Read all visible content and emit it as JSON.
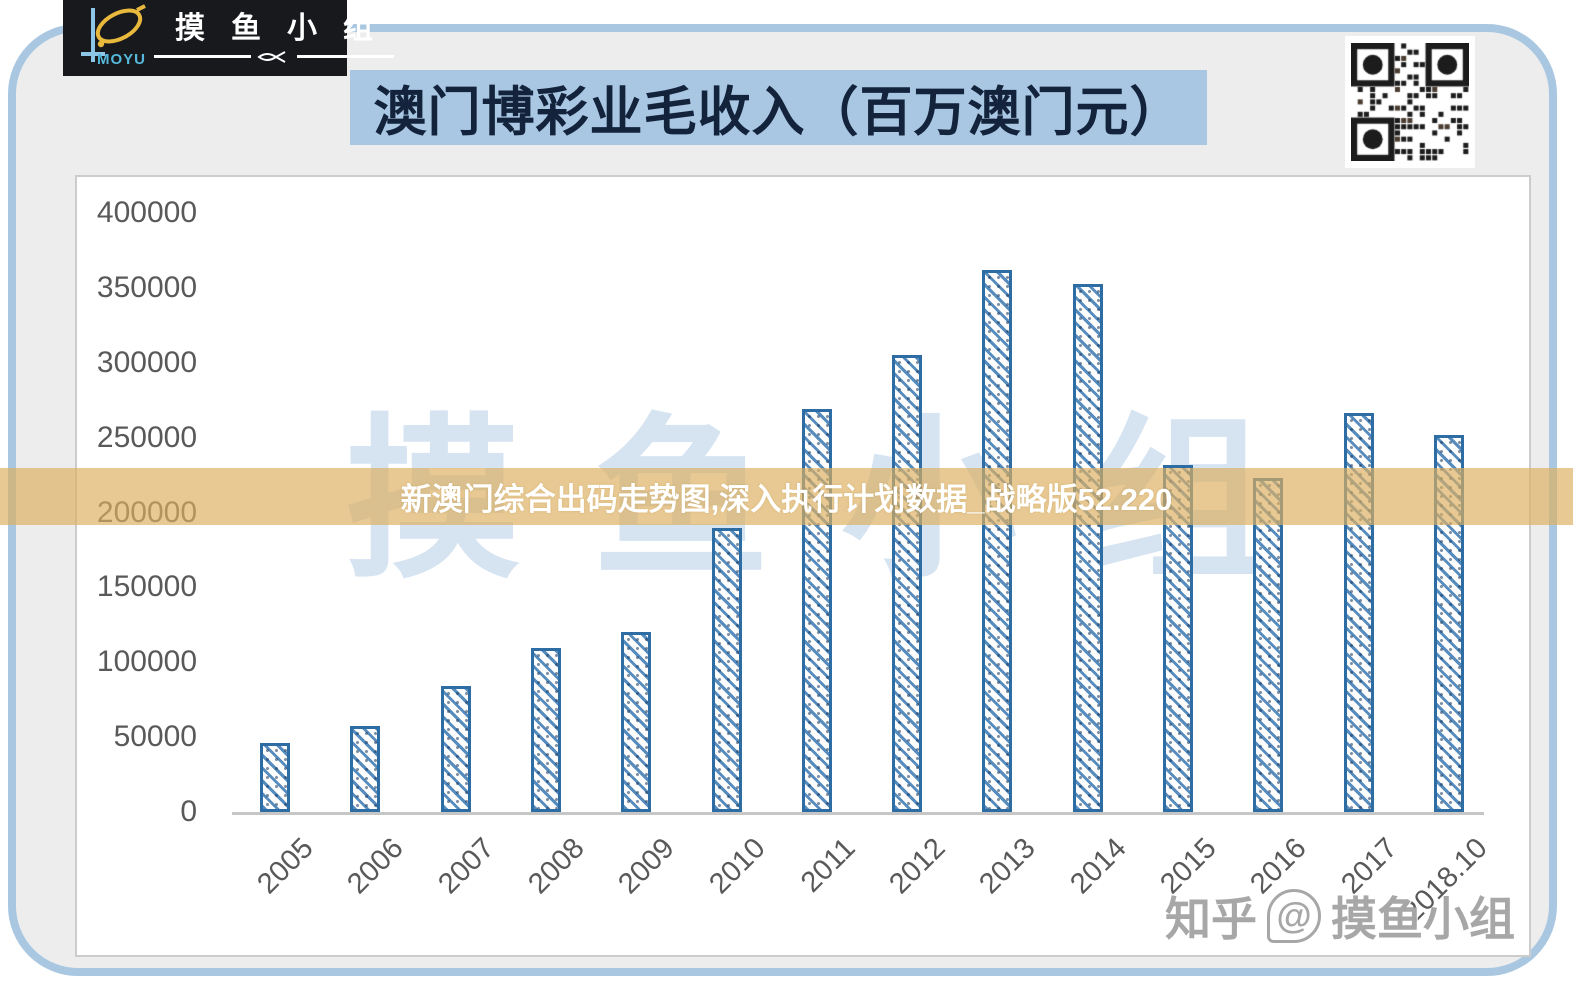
{
  "logo": {
    "brand": "MOYU",
    "group_name": "摸鱼小组",
    "brand_color": "#56b9dc",
    "fish_color": "#e9b93d"
  },
  "icons": {
    "logo_fish": "fish-icon",
    "underline_fish": "fish-icon",
    "qr": "qr-code"
  },
  "title": {
    "text": "澳门博彩业毛收入（百万澳门元）",
    "bg": "#a9c7e3"
  },
  "overlay_banner": {
    "text": "新澳门综合出码走势图,深入执行计划数据_战略版52.220",
    "bg": "#ddb060"
  },
  "watermarks": {
    "center": "摸鱼小组",
    "bottom_prefix": "知乎",
    "bottom_at": "@",
    "bottom_name": "摸鱼小组"
  },
  "chart_data": {
    "type": "bar",
    "title": "澳门博彩业毛收入（百万澳门元）",
    "unit": "百万澳门元",
    "categories": [
      "2005",
      "2006",
      "2007",
      "2008",
      "2009",
      "2010",
      "2011",
      "2012",
      "2013",
      "2014",
      "2015",
      "2016",
      "2017",
      "2018.10"
    ],
    "values": [
      46047,
      57521,
      83847,
      109826,
      120383,
      189588,
      269058,
      305235,
      361866,
      352714,
      231811,
      223210,
      266743,
      252040
    ],
    "ylim": [
      0,
      400000
    ],
    "yticks": [
      0,
      50000,
      100000,
      150000,
      200000,
      250000,
      300000,
      350000,
      400000
    ],
    "grid": false,
    "legend": false,
    "bar_border_color": "#2e6da4",
    "bar_pattern": "diagonal-hatch",
    "axis_color": "#c6c6c6"
  }
}
